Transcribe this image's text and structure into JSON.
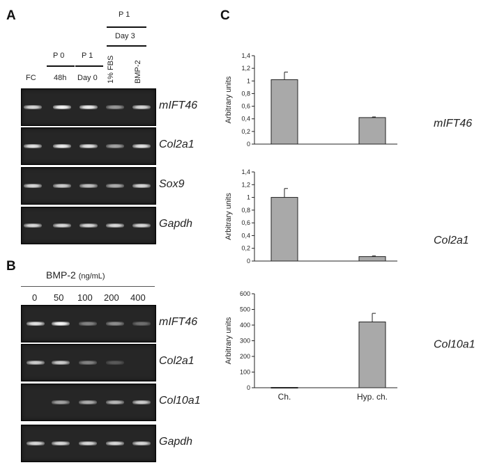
{
  "panel_a": {
    "letter": "A",
    "header_p1_top": "P 1",
    "header_day3": "Day 3",
    "header_p0": "P 0",
    "header_p1": "P 1",
    "lanes": [
      "FC",
      "48h",
      "Day 0",
      "1% FBS",
      "BMP-2"
    ],
    "genes": [
      "mIFT46",
      "Col2a1",
      "Sox9",
      "Gapdh"
    ],
    "band_intensity": [
      [
        0.85,
        1.0,
        0.95,
        0.55,
        0.85
      ],
      [
        0.9,
        0.95,
        0.9,
        0.6,
        0.9
      ],
      [
        0.85,
        0.8,
        0.75,
        0.65,
        0.85
      ],
      [
        0.85,
        0.85,
        0.85,
        0.85,
        0.85
      ]
    ]
  },
  "panel_b": {
    "letter": "B",
    "header": "BMP-2",
    "header_unit": "(ng/mL)",
    "lanes": [
      "0",
      "50",
      "100",
      "200",
      "400"
    ],
    "genes": [
      "mIFT46",
      "Col2a1",
      "Col10a1",
      "Gapdh"
    ],
    "band_intensity": [
      [
        0.9,
        1.0,
        0.45,
        0.5,
        0.35
      ],
      [
        0.8,
        0.8,
        0.45,
        0.25,
        0.0
      ],
      [
        0.0,
        0.6,
        0.65,
        0.7,
        0.8
      ],
      [
        0.85,
        0.85,
        0.85,
        0.85,
        0.85
      ]
    ]
  },
  "panel_c": {
    "letter": "C",
    "x_categories": [
      "Ch.",
      "Hyp. ch."
    ],
    "chart_data": [
      {
        "type": "bar",
        "gene": "mIFT46",
        "ylabel": "Arbitrary units",
        "ylim": [
          0,
          1.4
        ],
        "yticks": [
          "0",
          "0,2",
          "0,4",
          "0,6",
          "0,8",
          "1",
          "1,2",
          "1,4"
        ],
        "categories": [
          "Ch.",
          "Hyp. ch."
        ],
        "values": [
          1.02,
          0.42
        ],
        "errors": [
          0.12,
          0.01
        ]
      },
      {
        "type": "bar",
        "gene": "Col2a1",
        "ylabel": "Arbitrary units",
        "ylim": [
          0,
          1.4
        ],
        "yticks": [
          "0",
          "0,2",
          "0,4",
          "0,6",
          "0,8",
          "1",
          "1,2",
          "1,4"
        ],
        "categories": [
          "Ch.",
          "Hyp. ch."
        ],
        "values": [
          1.0,
          0.07
        ],
        "errors": [
          0.14,
          0.01
        ]
      },
      {
        "type": "bar",
        "gene": "Col10a1",
        "ylabel": "Arbitrary units",
        "ylim": [
          0,
          600
        ],
        "yticks": [
          "0",
          "100",
          "200",
          "300",
          "400",
          "500",
          "600"
        ],
        "categories": [
          "Ch.",
          "Hyp. ch."
        ],
        "values": [
          2,
          420
        ],
        "errors": [
          0,
          55
        ]
      }
    ]
  },
  "colors": {
    "bar_fill": "#a9a9a9",
    "gel_bg": "#262626"
  }
}
